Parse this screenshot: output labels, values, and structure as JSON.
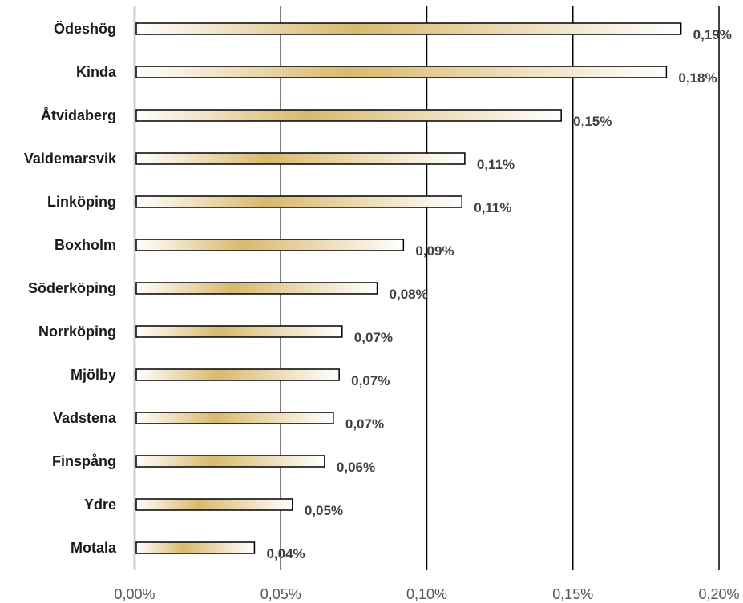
{
  "chart_data": {
    "type": "bar",
    "orientation": "horizontal",
    "title": "",
    "xlabel": "",
    "ylabel": "",
    "categories": [
      "Ödeshög",
      "Kinda",
      "Åtvidaberg",
      "Valdemarsvik",
      "Linköping",
      "Boxholm",
      "Söderköping",
      "Norrköping",
      "Mjölby",
      "Vadstena",
      "Finspång",
      "Ydre",
      "Motala"
    ],
    "values": [
      0.187,
      0.182,
      0.146,
      0.113,
      0.112,
      0.092,
      0.083,
      0.071,
      0.07,
      0.068,
      0.065,
      0.054,
      0.041
    ],
    "value_labels": [
      "0,19%",
      "0,18%",
      "0,15%",
      "0,11%",
      "0,11%",
      "0,09%",
      "0,08%",
      "0,07%",
      "0,07%",
      "0,07%",
      "0,06%",
      "0,05%",
      "0,04%"
    ],
    "xlim": [
      0,
      0.2
    ],
    "xticks": [
      0,
      0.05,
      0.1,
      0.15,
      0.2
    ],
    "xtick_labels": [
      "0,00%",
      "0,05%",
      "0,10%",
      "0,15%",
      "0,20%"
    ],
    "grid": "vertical",
    "legend": "none",
    "colors": {
      "bar_fill_light": "#ffffff",
      "bar_fill_gold": "#d9b96e",
      "bar_stroke": "#000000",
      "gridline": "#000000",
      "axis": "#d0d0d0"
    }
  }
}
